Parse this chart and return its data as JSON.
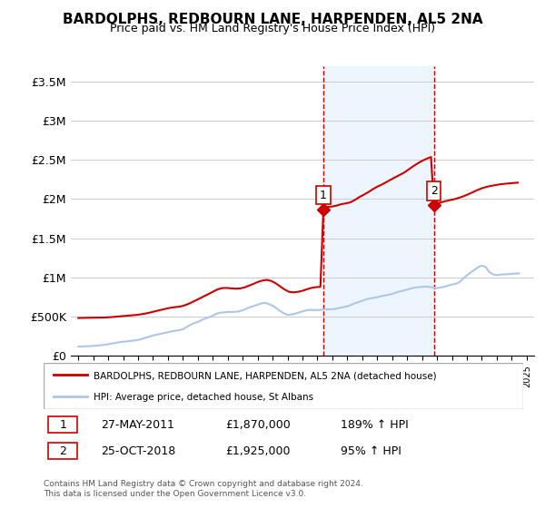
{
  "title": "BARDOLPHS, REDBOURN LANE, HARPENDEN, AL5 2NA",
  "subtitle": "Price paid vs. HM Land Registry's House Price Index (HPI)",
  "ylim": [
    0,
    3700000
  ],
  "yticks": [
    0,
    500000,
    1000000,
    1500000,
    2000000,
    2500000,
    3000000,
    3500000
  ],
  "ytick_labels": [
    "£0",
    "£500K",
    "£1M",
    "£1.5M",
    "£2M",
    "£2.5M",
    "£3M",
    "£3.5M"
  ],
  "xlim_start": 1994.5,
  "xlim_end": 2025.5,
  "xtick_years": [
    1995,
    1996,
    1997,
    1998,
    1999,
    2000,
    2001,
    2002,
    2003,
    2004,
    2005,
    2006,
    2007,
    2008,
    2009,
    2010,
    2011,
    2012,
    2013,
    2014,
    2015,
    2016,
    2017,
    2018,
    2019,
    2020,
    2021,
    2022,
    2023,
    2024,
    2025
  ],
  "hpi_color": "#aec6e8",
  "sale_color": "#cc0000",
  "vline_color": "#cc0000",
  "bg_shade_color": "#ddeeff",
  "marker1_x": 2011.4,
  "marker1_y": 1870000,
  "marker1_label": "1",
  "marker1_date": "27-MAY-2011",
  "marker1_price": "£1,870,000",
  "marker1_hpi": "189% ↑ HPI",
  "marker2_x": 2018.8,
  "marker2_y": 1925000,
  "marker2_label": "2",
  "marker2_date": "25-OCT-2018",
  "marker2_price": "£1,925,000",
  "marker2_hpi": "95% ↑ HPI",
  "legend_sale_label": "BARDOLPHS, REDBOURN LANE, HARPENDEN, AL5 2NA (detached house)",
  "legend_hpi_label": "HPI: Average price, detached house, St Albans",
  "footer": "Contains HM Land Registry data © Crown copyright and database right 2024.\nThis data is licensed under the Open Government Licence v3.0.",
  "hpi_data_x": [
    1995.0,
    1995.25,
    1995.5,
    1995.75,
    1996.0,
    1996.25,
    1996.5,
    1996.75,
    1997.0,
    1997.25,
    1997.5,
    1997.75,
    1998.0,
    1998.25,
    1998.5,
    1998.75,
    1999.0,
    1999.25,
    1999.5,
    1999.75,
    2000.0,
    2000.25,
    2000.5,
    2000.75,
    2001.0,
    2001.25,
    2001.5,
    2001.75,
    2002.0,
    2002.25,
    2002.5,
    2002.75,
    2003.0,
    2003.25,
    2003.5,
    2003.75,
    2004.0,
    2004.25,
    2004.5,
    2004.75,
    2005.0,
    2005.25,
    2005.5,
    2005.75,
    2006.0,
    2006.25,
    2006.5,
    2006.75,
    2007.0,
    2007.25,
    2007.5,
    2007.75,
    2008.0,
    2008.25,
    2008.5,
    2008.75,
    2009.0,
    2009.25,
    2009.5,
    2009.75,
    2010.0,
    2010.25,
    2010.5,
    2010.75,
    2011.0,
    2011.25,
    2011.5,
    2011.75,
    2012.0,
    2012.25,
    2012.5,
    2012.75,
    2013.0,
    2013.25,
    2013.5,
    2013.75,
    2014.0,
    2014.25,
    2014.5,
    2014.75,
    2015.0,
    2015.25,
    2015.5,
    2015.75,
    2016.0,
    2016.25,
    2016.5,
    2016.75,
    2017.0,
    2017.25,
    2017.5,
    2017.75,
    2018.0,
    2018.25,
    2018.5,
    2018.75,
    2019.0,
    2019.25,
    2019.5,
    2019.75,
    2020.0,
    2020.25,
    2020.5,
    2020.75,
    2021.0,
    2021.25,
    2021.5,
    2021.75,
    2022.0,
    2022.25,
    2022.5,
    2022.75,
    2023.0,
    2023.25,
    2023.5,
    2023.75,
    2024.0,
    2024.25,
    2024.5
  ],
  "hpi_data_y": [
    115000,
    117000,
    119000,
    121000,
    124000,
    128000,
    133000,
    138000,
    145000,
    155000,
    163000,
    171000,
    177000,
    182000,
    188000,
    193000,
    200000,
    213000,
    228000,
    242000,
    258000,
    268000,
    278000,
    288000,
    298000,
    310000,
    318000,
    325000,
    337000,
    365000,
    393000,
    415000,
    430000,
    455000,
    475000,
    490000,
    510000,
    535000,
    548000,
    552000,
    558000,
    558000,
    560000,
    565000,
    578000,
    600000,
    618000,
    635000,
    650000,
    668000,
    675000,
    658000,
    638000,
    608000,
    570000,
    540000,
    520000,
    525000,
    535000,
    550000,
    565000,
    578000,
    585000,
    582000,
    582000,
    585000,
    590000,
    592000,
    592000,
    598000,
    610000,
    620000,
    630000,
    648000,
    668000,
    685000,
    700000,
    718000,
    730000,
    738000,
    745000,
    758000,
    768000,
    778000,
    788000,
    805000,
    820000,
    830000,
    842000,
    858000,
    868000,
    875000,
    878000,
    882000,
    878000,
    870000,
    862000,
    870000,
    880000,
    895000,
    908000,
    918000,
    938000,
    985000,
    1025000,
    1060000,
    1095000,
    1130000,
    1150000,
    1135000,
    1068000,
    1038000,
    1028000,
    1035000,
    1038000,
    1040000,
    1045000,
    1048000,
    1050000
  ],
  "sale_data_x": [
    1995.0,
    1995.3,
    1995.6,
    1995.9,
    1996.2,
    1996.5,
    1996.8,
    1997.1,
    1997.4,
    1997.7,
    1998.0,
    1998.3,
    1998.6,
    1998.9,
    1999.2,
    1999.5,
    1999.8,
    2000.1,
    2000.4,
    2000.7,
    2001.0,
    2001.3,
    2001.6,
    2001.9,
    2002.2,
    2002.5,
    2002.8,
    2003.1,
    2003.4,
    2003.7,
    2004.0,
    2004.3,
    2004.6,
    2004.9,
    2005.2,
    2005.5,
    2005.8,
    2006.1,
    2006.4,
    2006.7,
    2007.0,
    2007.3,
    2007.6,
    2007.9,
    2008.2,
    2008.5,
    2008.8,
    2009.1,
    2009.4,
    2009.7,
    2010.0,
    2010.3,
    2010.6,
    2010.9,
    2011.2,
    2011.4,
    2011.7,
    2012.0,
    2012.3,
    2012.6,
    2012.9,
    2013.2,
    2013.5,
    2013.8,
    2014.1,
    2014.4,
    2014.7,
    2015.0,
    2015.3,
    2015.6,
    2015.9,
    2016.2,
    2016.5,
    2016.8,
    2017.1,
    2017.4,
    2017.7,
    2018.0,
    2018.3,
    2018.6,
    2018.8,
    2019.0,
    2019.3,
    2019.6,
    2019.9,
    2020.2,
    2020.5,
    2020.8,
    2021.1,
    2021.4,
    2021.7,
    2022.0,
    2022.3,
    2022.6,
    2022.9,
    2023.2,
    2023.5,
    2023.8,
    2024.1,
    2024.4
  ],
  "sale_data_y": [
    480000,
    482000,
    483000,
    484000,
    485000,
    486000,
    487000,
    490000,
    495000,
    500000,
    505000,
    510000,
    515000,
    520000,
    528000,
    538000,
    550000,
    565000,
    578000,
    592000,
    605000,
    615000,
    622000,
    630000,
    648000,
    672000,
    700000,
    728000,
    758000,
    785000,
    815000,
    845000,
    862000,
    865000,
    860000,
    855000,
    858000,
    870000,
    892000,
    915000,
    940000,
    958000,
    968000,
    955000,
    925000,
    885000,
    845000,
    815000,
    808000,
    815000,
    828000,
    848000,
    865000,
    875000,
    878000,
    1870000,
    1900000,
    1905000,
    1918000,
    1935000,
    1945000,
    1958000,
    1988000,
    2025000,
    2055000,
    2088000,
    2125000,
    2158000,
    2185000,
    2215000,
    2248000,
    2278000,
    2308000,
    2338000,
    2378000,
    2418000,
    2455000,
    2488000,
    2515000,
    2538000,
    1925000,
    1945000,
    1960000,
    1975000,
    1988000,
    2000000,
    2018000,
    2038000,
    2062000,
    2088000,
    2115000,
    2138000,
    2155000,
    2168000,
    2178000,
    2188000,
    2195000,
    2200000,
    2205000,
    2210000
  ]
}
